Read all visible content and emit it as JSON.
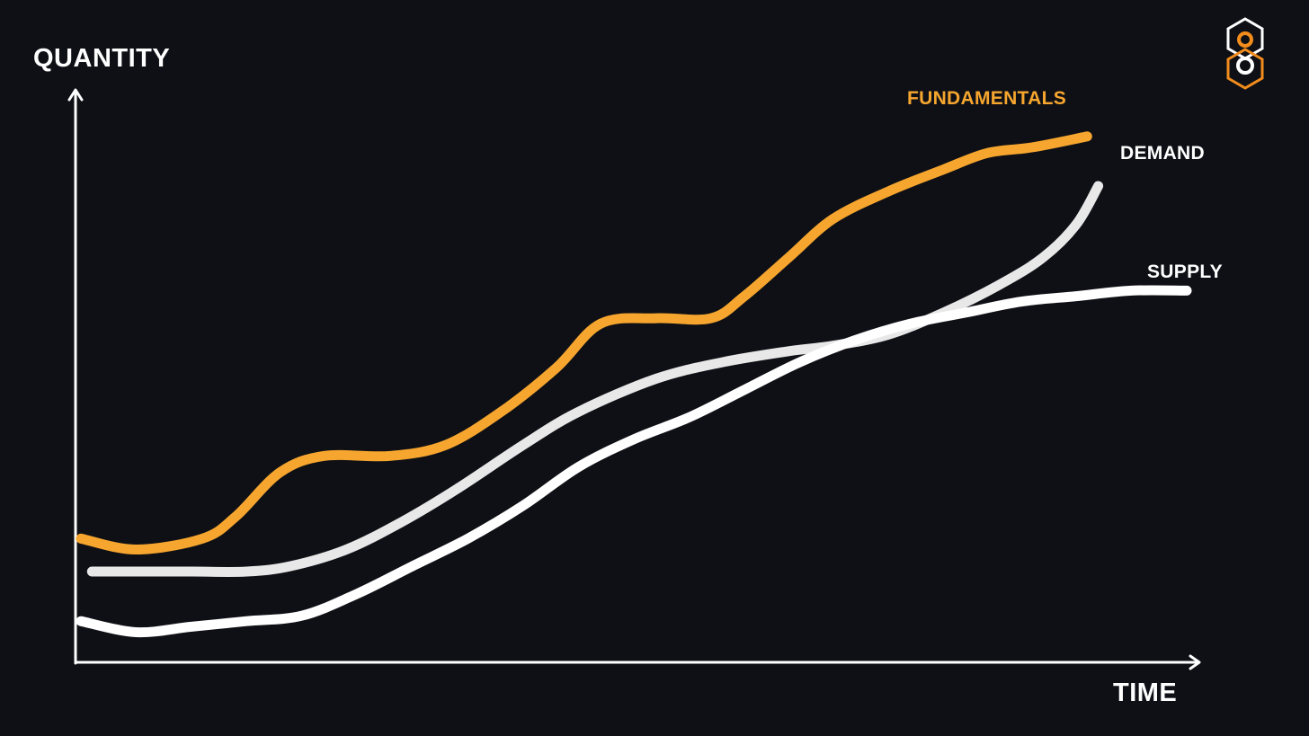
{
  "colors": {
    "background": "#0f1016",
    "axis": "#ffffff",
    "fundamentals": "#f6a62e",
    "demand": "#e8e8e8",
    "supply": "#ffffff",
    "logo_white": "#ffffff",
    "logo_orange": "#f28c1c"
  },
  "logo": {
    "icon": "brand-logo-icon"
  },
  "chart_data": {
    "type": "line",
    "title": "",
    "xlabel": "TIME",
    "ylabel": "QUANTITY",
    "x_ticks": "none",
    "y_ticks": "none",
    "grid": false,
    "xlim": [
      0,
      100
    ],
    "ylim": [
      0,
      100
    ],
    "legend": "inline labels at line ends",
    "series": [
      {
        "name": "FUNDAMENTALS",
        "color": "#f6a62e",
        "x": [
          0,
          5,
          11,
          14,
          18,
          22,
          28,
          33,
          38,
          43,
          47,
          52,
          57,
          60,
          64,
          68,
          73,
          78,
          82,
          86,
          91
        ],
        "y": [
          21,
          19,
          21,
          25,
          33,
          36,
          36,
          38,
          44,
          52,
          60,
          61,
          61,
          65,
          72,
          79,
          84,
          88,
          91,
          92,
          94
        ]
      },
      {
        "name": "DEMAND",
        "color": "#e8e8e8",
        "x": [
          1,
          5,
          10,
          15,
          19,
          24,
          29,
          34,
          40,
          45,
          52,
          58,
          64,
          68,
          73,
          78,
          83,
          87,
          90,
          92
        ],
        "y": [
          15,
          15,
          15,
          15,
          16,
          19,
          24,
          30,
          38,
          44,
          50,
          53,
          55,
          56,
          58,
          62,
          67,
          72,
          78,
          85
        ]
      },
      {
        "name": "SUPPLY",
        "color": "#ffffff",
        "x": [
          0,
          5,
          10,
          15,
          20,
          25,
          30,
          35,
          40,
          45,
          50,
          55,
          60,
          65,
          70,
          75,
          80,
          85,
          90,
          95,
          100
        ],
        "y": [
          6,
          4,
          5,
          6,
          7,
          11,
          16,
          21,
          27,
          34,
          39,
          43,
          48,
          53,
          57,
          60,
          62,
          64,
          65,
          66,
          66
        ]
      }
    ]
  }
}
